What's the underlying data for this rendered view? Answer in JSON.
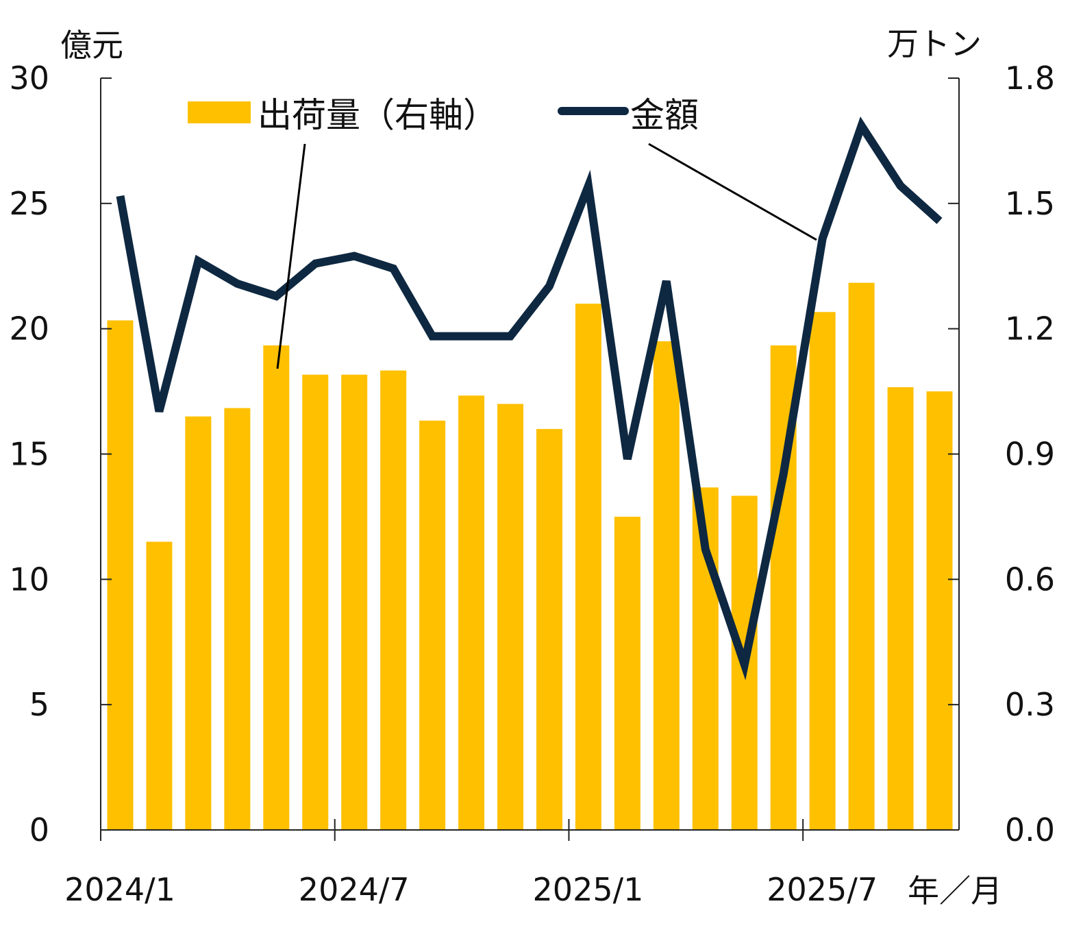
{
  "chart_data": {
    "type": "bar+line",
    "left_axis": {
      "unit_label": "億元",
      "ticks": [
        "0",
        "5",
        "10",
        "15",
        "20",
        "25",
        "30"
      ],
      "range": [
        0,
        30
      ]
    },
    "right_axis": {
      "unit_label": "万トン",
      "ticks": [
        "0.0",
        "0.3",
        "0.6",
        "0.9",
        "1.2",
        "1.5",
        "1.8"
      ],
      "range": [
        0,
        1.8
      ]
    },
    "x_unit_label": "年／月",
    "x_tick_labels": [
      "2024/1",
      "2024/7",
      "2025/1",
      "2025/7"
    ],
    "x_tick_indices": [
      0,
      6,
      12,
      18
    ],
    "categories": [
      "2024/1",
      "2024/2",
      "2024/3",
      "2024/4",
      "2024/5",
      "2024/6",
      "2024/7",
      "2024/8",
      "2024/9",
      "2024/10",
      "2024/11",
      "2024/12",
      "2025/1",
      "2025/2",
      "2025/3",
      "2025/4",
      "2025/5",
      "2025/6",
      "2025/7",
      "2025/8",
      "2025/9",
      "2025/10"
    ],
    "series": [
      {
        "name": "出荷量（右軸）",
        "type": "bar",
        "axis": "right",
        "color": "#FFC000",
        "values": [
          1.22,
          0.69,
          0.99,
          1.01,
          1.16,
          1.09,
          1.09,
          1.1,
          0.98,
          1.04,
          1.02,
          0.96,
          1.26,
          0.75,
          1.17,
          0.82,
          0.8,
          1.16,
          1.24,
          1.31,
          1.06,
          1.05
        ]
      },
      {
        "name": "金額",
        "type": "line",
        "axis": "left",
        "color": "#0E2841",
        "values": [
          25.3,
          16.7,
          22.7,
          21.8,
          21.3,
          22.6,
          22.9,
          22.4,
          19.7,
          19.7,
          19.7,
          21.7,
          25.7,
          14.8,
          21.9,
          11.2,
          6.6,
          14.2,
          23.6,
          28.1,
          25.7,
          24.3
        ]
      }
    ],
    "legend": "top"
  }
}
